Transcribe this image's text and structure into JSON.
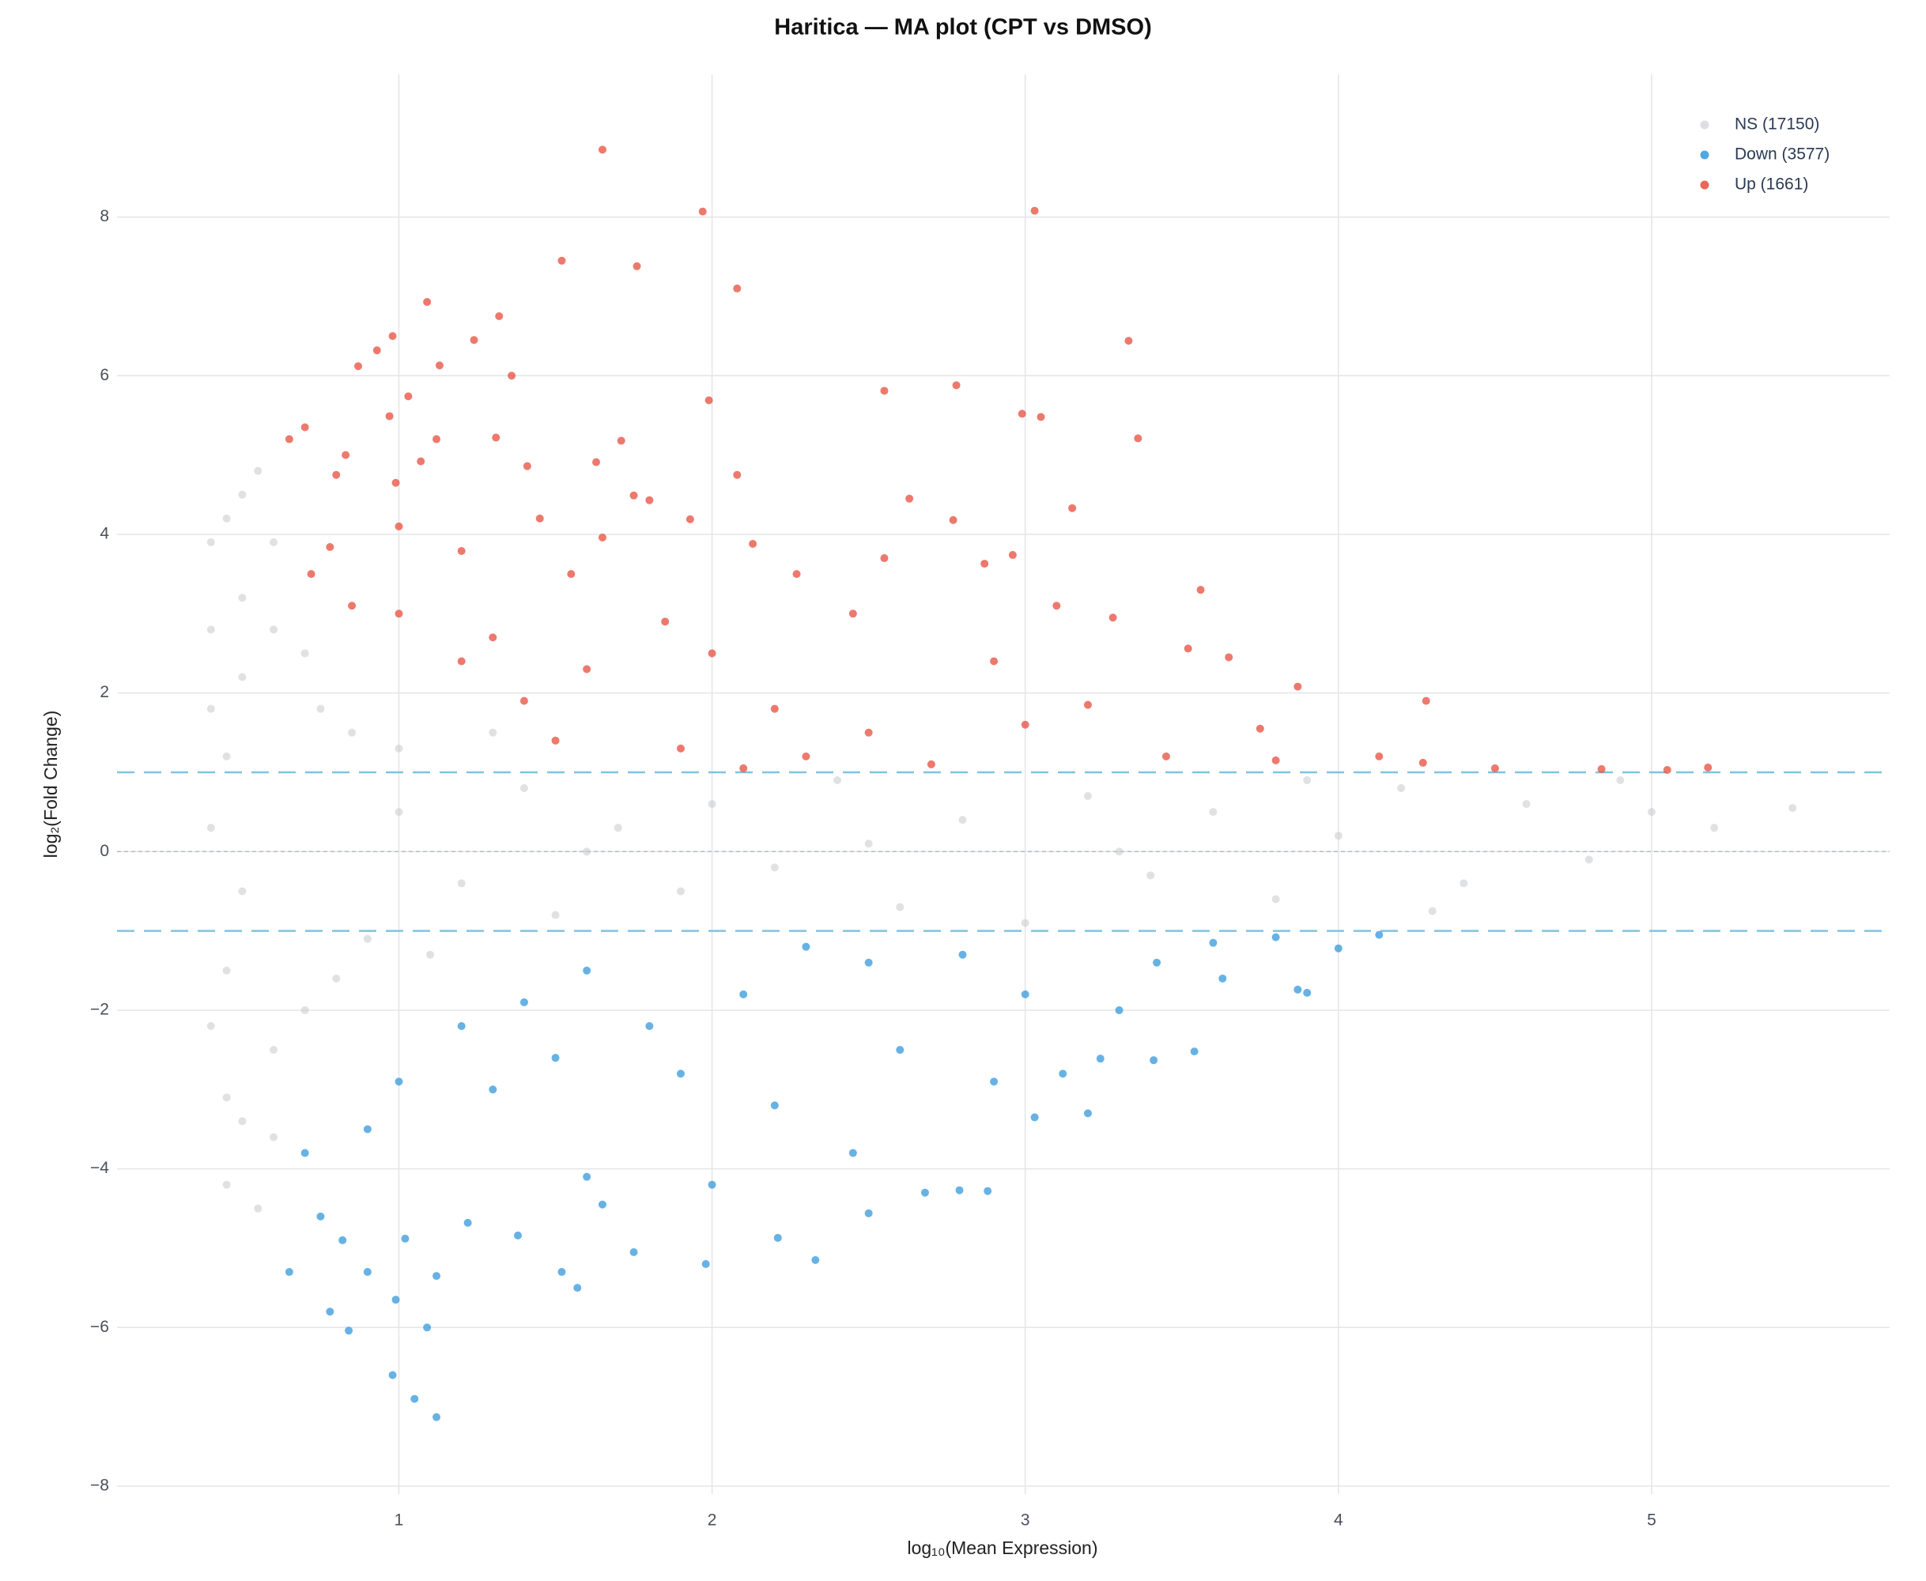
{
  "chart_data": {
    "type": "scatter",
    "title": "Haritica — MA plot (CPT vs DMSO)",
    "x_label": "log₁₀(Mean Expression)",
    "y_label": "log₂(Fold Change)",
    "xlim": [
      0.1,
      5.76
    ],
    "ylim": [
      -8.1,
      9.8
    ],
    "xticks": [
      1,
      2,
      3,
      4,
      5
    ],
    "yticks": [
      {
        "value": -8,
        "label": "−8"
      },
      {
        "value": -6,
        "label": "−6"
      },
      {
        "value": -4,
        "label": "−4"
      },
      {
        "value": -2,
        "label": "−2"
      },
      0,
      2,
      4,
      6,
      8
    ],
    "grid": true,
    "legend": "top-right",
    "zero_line": 0,
    "threshold_lines": [
      -1,
      1
    ],
    "threshold_color": "#7fc4e0",
    "series": [
      {
        "name": "NS (17150)",
        "color": "#c5c8cc",
        "x": [
          0.4,
          0.45,
          0.5,
          0.55,
          0.4,
          0.5,
          0.6,
          0.4,
          0.5,
          0.6,
          0.7,
          0.45,
          0.5,
          0.4,
          0.45,
          0.4,
          0.45,
          0.5,
          0.45,
          0.55,
          0.6,
          0.6,
          0.7,
          0.8,
          0.75,
          0.85,
          1.0,
          1.1,
          1.0,
          1.2,
          1.4,
          1.5,
          1.7,
          1.9,
          2.0,
          2.2,
          2.4,
          2.6,
          2.8,
          3.0,
          3.2,
          3.4,
          3.6,
          3.8,
          4.0,
          4.2,
          4.4,
          4.6,
          4.8,
          5.0,
          5.2,
          5.45,
          4.3,
          3.9,
          1.3,
          0.9,
          2.5,
          1.6,
          3.3,
          4.9
        ],
        "values": [
          3.9,
          4.2,
          4.5,
          4.8,
          2.8,
          3.2,
          3.9,
          1.8,
          2.2,
          2.8,
          2.5,
          1.2,
          -0.5,
          0.3,
          -1.5,
          -2.2,
          -3.1,
          -3.4,
          -4.2,
          -4.5,
          -3.6,
          -2.5,
          -2.0,
          -1.6,
          1.8,
          1.5,
          1.3,
          -1.3,
          0.5,
          -0.4,
          0.8,
          -0.8,
          0.3,
          -0.5,
          0.6,
          -0.2,
          0.9,
          -0.7,
          0.4,
          -0.9,
          0.7,
          -0.3,
          0.5,
          -0.6,
          0.2,
          0.8,
          -0.4,
          0.6,
          -0.1,
          0.5,
          0.3,
          0.55,
          -0.75,
          0.9,
          1.5,
          -1.1,
          0.1,
          0.0,
          0.0,
          0.9
        ]
      },
      {
        "name": "Down (3577)",
        "color": "#3498db",
        "x": [
          1.12,
          1.05,
          0.98,
          1.09,
          0.84,
          0.99,
          0.78,
          0.65,
          1.57,
          1.52,
          1.98,
          2.33,
          1.12,
          0.9,
          1.75,
          2.21,
          0.82,
          1.02,
          1.38,
          2.5,
          1.65,
          2.79,
          2.88,
          2.68,
          2.0,
          1.6,
          1.22,
          0.75,
          0.7,
          3.03,
          3.2,
          2.45,
          3.12,
          3.41,
          3.54,
          3.24,
          3.87,
          3.9,
          4.0,
          4.13,
          3.63,
          3.8,
          3.42,
          3.3,
          2.9,
          2.2,
          1.9,
          1.5,
          1.3,
          1.0,
          0.9,
          2.6,
          2.1,
          1.6,
          2.5,
          3.0,
          1.8,
          2.3,
          1.4,
          3.6,
          2.8,
          1.2
        ],
        "values": [
          -7.13,
          -6.9,
          -6.6,
          -6.0,
          -6.04,
          -5.65,
          -5.8,
          -5.3,
          -5.5,
          -5.3,
          -5.2,
          -5.15,
          -5.35,
          -5.3,
          -5.05,
          -4.87,
          -4.9,
          -4.88,
          -4.84,
          -4.56,
          -4.45,
          -4.27,
          -4.28,
          -4.3,
          -4.2,
          -4.1,
          -4.68,
          -4.6,
          -3.8,
          -3.35,
          -3.3,
          -3.8,
          -2.8,
          -2.63,
          -2.52,
          -2.61,
          -1.74,
          -1.78,
          -1.22,
          -1.05,
          -1.6,
          -1.08,
          -1.4,
          -2.0,
          -2.9,
          -3.2,
          -2.8,
          -2.6,
          -3.0,
          -2.9,
          -3.5,
          -2.5,
          -1.8,
          -1.5,
          -1.4,
          -1.8,
          -2.2,
          -1.2,
          -1.9,
          -1.15,
          -1.3,
          -2.2
        ]
      },
      {
        "name": "Up (1661)",
        "color": "#e74c3c",
        "x": [
          1.65,
          1.97,
          3.03,
          1.52,
          1.76,
          2.08,
          1.09,
          1.32,
          1.24,
          3.33,
          0.98,
          0.93,
          0.87,
          1.13,
          1.36,
          1.03,
          2.55,
          2.78,
          1.99,
          2.99,
          3.05,
          0.97,
          0.7,
          0.65,
          1.12,
          1.31,
          1.71,
          3.36,
          1.07,
          1.63,
          0.8,
          0.83,
          1.41,
          2.08,
          0.99,
          1.75,
          2.63,
          3.15,
          1.8,
          1.0,
          1.45,
          1.93,
          2.77,
          2.13,
          1.65,
          1.2,
          0.78,
          2.55,
          2.87,
          2.96,
          1.55,
          2.27,
          3.1,
          3.56,
          2.45,
          1.85,
          1.3,
          3.28,
          2.0,
          3.52,
          3.65,
          2.9,
          1.6,
          3.2,
          3.87,
          4.28,
          2.2,
          1.4,
          2.5,
          3.0,
          3.75,
          1.9,
          2.3,
          2.7,
          3.45,
          4.13,
          3.8,
          4.27,
          4.5,
          4.84,
          5.18,
          5.05,
          1.5,
          2.1,
          1.2,
          1.0,
          0.85,
          0.72
        ],
        "values": [
          8.85,
          8.07,
          8.08,
          7.45,
          7.38,
          7.1,
          6.93,
          6.75,
          6.45,
          6.44,
          6.5,
          6.32,
          6.12,
          6.13,
          6.0,
          5.74,
          5.81,
          5.88,
          5.69,
          5.52,
          5.48,
          5.49,
          5.35,
          5.2,
          5.2,
          5.22,
          5.18,
          5.21,
          4.92,
          4.91,
          4.75,
          5.0,
          4.86,
          4.75,
          4.65,
          4.49,
          4.45,
          4.33,
          4.43,
          4.1,
          4.2,
          4.19,
          4.18,
          3.88,
          3.96,
          3.79,
          3.84,
          3.7,
          3.63,
          3.74,
          3.5,
          3.5,
          3.1,
          3.3,
          3.0,
          2.9,
          2.7,
          2.95,
          2.5,
          2.56,
          2.45,
          2.4,
          2.3,
          1.85,
          2.08,
          1.9,
          1.8,
          1.9,
          1.5,
          1.6,
          1.55,
          1.3,
          1.2,
          1.1,
          1.2,
          1.2,
          1.15,
          1.12,
          1.05,
          1.04,
          1.06,
          1.03,
          1.4,
          1.05,
          2.4,
          3.0,
          3.1,
          3.5
        ]
      }
    ]
  }
}
